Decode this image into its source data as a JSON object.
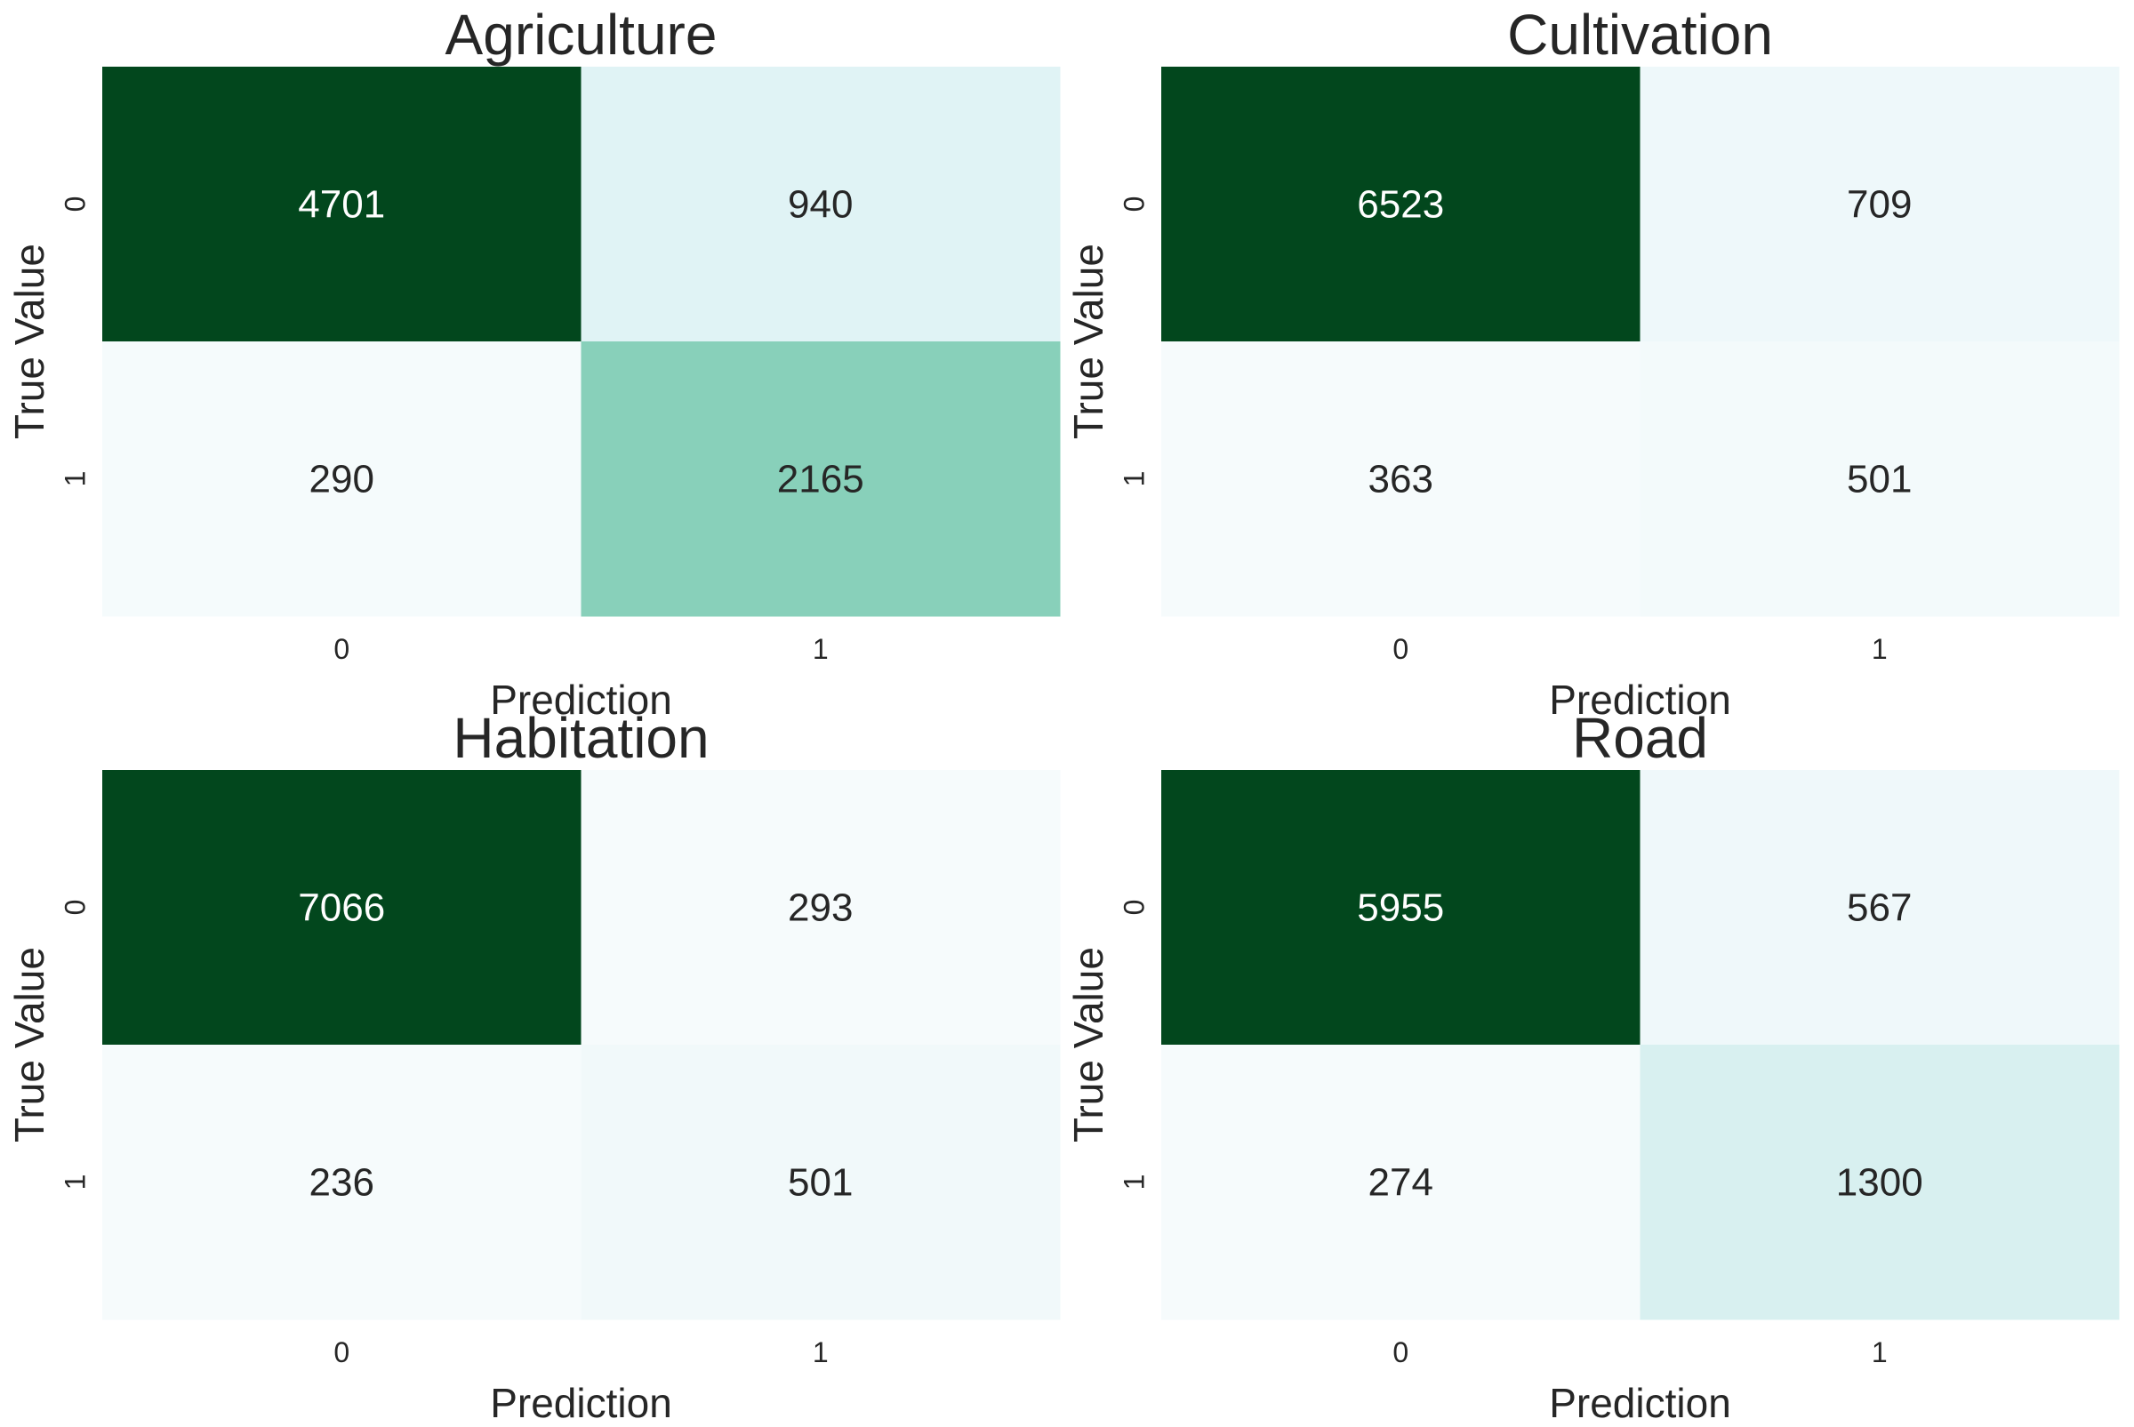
{
  "chart_data": [
    {
      "type": "heatmap",
      "title": "Agriculture",
      "xlabel": "Prediction",
      "ylabel": "True Value",
      "x_ticks": [
        "0",
        "1"
      ],
      "y_ticks": [
        "0",
        "1"
      ],
      "values": [
        [
          4701,
          940
        ],
        [
          290,
          2165
        ]
      ],
      "cell_colors": [
        [
          "#02471d",
          "#e0f3f5"
        ],
        [
          "#f5fbfc",
          "#88d0ba"
        ]
      ]
    },
    {
      "type": "heatmap",
      "title": "Cultivation",
      "xlabel": "Prediction",
      "ylabel": "True Value",
      "x_ticks": [
        "0",
        "1"
      ],
      "y_ticks": [
        "0",
        "1"
      ],
      "values": [
        [
          6523,
          709
        ],
        [
          363,
          501
        ]
      ],
      "cell_colors": [
        [
          "#02471d",
          "#eef8fa"
        ],
        [
          "#f6fbfc",
          "#f3fafb"
        ]
      ]
    },
    {
      "type": "heatmap",
      "title": "Habitation",
      "xlabel": "Prediction",
      "ylabel": "True Value",
      "x_ticks": [
        "0",
        "1"
      ],
      "y_ticks": [
        "0",
        "1"
      ],
      "values": [
        [
          7066,
          293
        ],
        [
          236,
          501
        ]
      ],
      "cell_colors": [
        [
          "#02471d",
          "#f6fbfc"
        ],
        [
          "#f6fbfc",
          "#f1f9fa"
        ]
      ]
    },
    {
      "type": "heatmap",
      "title": "Road",
      "xlabel": "Prediction",
      "ylabel": "True Value",
      "x_ticks": [
        "0",
        "1"
      ],
      "y_ticks": [
        "0",
        "1"
      ],
      "values": [
        [
          5955,
          567
        ],
        [
          274,
          1300
        ]
      ],
      "cell_colors": [
        [
          "#02471d",
          "#eff8fa"
        ],
        [
          "#f6fbfc",
          "#d8f0f0"
        ]
      ]
    }
  ],
  "colors": {
    "text_dark": "#262626",
    "text_light": "#ffffff"
  }
}
